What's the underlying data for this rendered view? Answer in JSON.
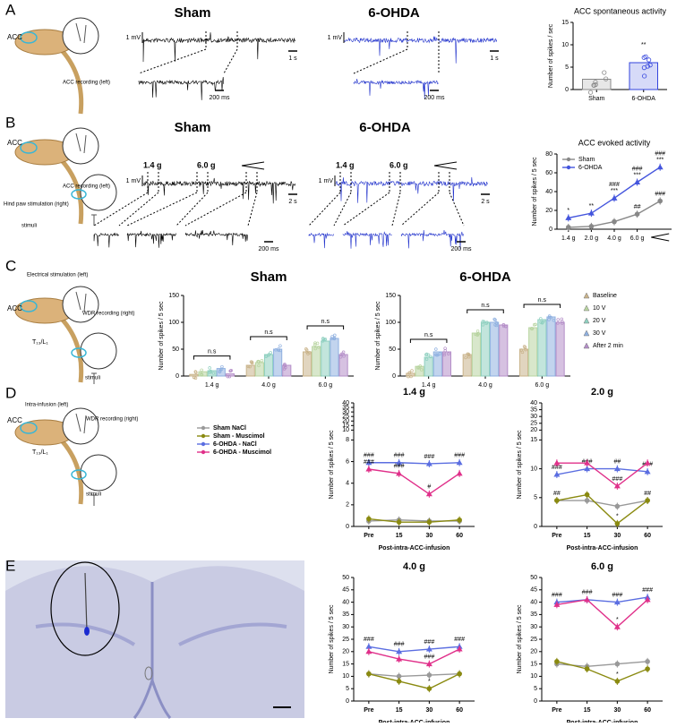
{
  "panels": [
    {
      "label": "A",
      "schematic": [
        "ACC",
        "ACC recording (left)"
      ],
      "recordings": [
        {
          "title": "Sham",
          "color": "#000000",
          "amplitude": "1 mV",
          "time": "1 s",
          "zoom_time": "200 ms"
        },
        {
          "title": "6-OHDA",
          "color": "#2233cc",
          "amplitude": "1 mV",
          "time": "1 s",
          "zoom_time": "200 ms"
        }
      ]
    },
    {
      "label": "B",
      "schematic": [
        "ACC",
        "ACC recording (left)",
        "Hind paw stimulation (right)",
        "stimuli"
      ],
      "recordings": [
        {
          "title": "Sham",
          "color": "#000000",
          "amplitude": "1 mV",
          "time": "2 s",
          "zoom_time": "200 ms",
          "stimuli": [
            "1.4 g",
            "6.0 g"
          ],
          "stimuli_colors": [
            "#e02020",
            "#000000"
          ]
        },
        {
          "title": "6-OHDA",
          "color": "#2233cc",
          "amplitude": "1 mV",
          "time": "2 s",
          "zoom_time": "200 ms",
          "stimuli": [
            "1.4 g",
            "6.0 g"
          ],
          "stimuli_colors": [
            "#e02020",
            "#000000"
          ]
        }
      ]
    },
    {
      "label": "C",
      "schematic": [
        "Electrical stimulation (left)",
        "ACC",
        "WDR recording (right)",
        "T₁₃/L₁",
        "stimuli"
      ]
    },
    {
      "label": "D",
      "schematic": [
        "Intra-infusion (left)",
        "ACC",
        "WDR recording (right)",
        "T₁₃/L₁",
        "stimuli"
      ]
    },
    {
      "label": "E"
    }
  ],
  "chart_data": [
    {
      "type": "bar",
      "title": "ACC spontaneous activity",
      "ylabel": "Number of spikes / sec",
      "categories": [
        "Sham",
        "6-OHDA"
      ],
      "values": [
        2.3,
        6.0
      ],
      "colors": [
        "#888888",
        "#3344dd"
      ],
      "significance": [
        null,
        "**"
      ],
      "ylim": [
        0,
        15
      ],
      "yticks": [
        0,
        5,
        10,
        15
      ]
    },
    {
      "type": "line",
      "title": "ACC evoked activity",
      "ylabel": "Number of spikes / 5 sec",
      "categories": [
        "1.4 g",
        "2.0 g",
        "4.0 g",
        "6.0 g",
        null
      ],
      "category_colors": [
        "#e02020",
        "#000000",
        "#000000",
        "#000000",
        null
      ],
      "ylim": [
        0,
        80
      ],
      "yticks": [
        0,
        20,
        40,
        60,
        80
      ],
      "legend": "upper left",
      "series": [
        {
          "name": "Sham",
          "color": "#888888",
          "marker": "circle",
          "values": [
            2,
            3,
            8,
            16,
            30
          ],
          "significance": [
            null,
            null,
            null,
            "##",
            "###"
          ]
        },
        {
          "name": "6-OHDA",
          "color": "#4455dd",
          "marker": "triangle",
          "values": [
            12,
            17,
            33,
            50,
            66
          ],
          "significance": [
            "*",
            "**",
            [
              "###",
              "***"
            ],
            [
              "###",
              "***"
            ],
            [
              "###",
              "***"
            ]
          ]
        }
      ]
    },
    {
      "type": "bar",
      "title": "Sham",
      "title_color": "#000000",
      "ylabel": "Number of spikes / 5 sec",
      "categories": [
        "1.4 g",
        "4.0 g",
        "6.0 g"
      ],
      "category_colors": [
        "#e02020",
        "#000000",
        "#000000"
      ],
      "ylim": [
        0,
        150
      ],
      "yticks": [
        0,
        50,
        100,
        150
      ],
      "brackets": [
        "n.s",
        "n.s",
        "n.s"
      ],
      "series": [
        {
          "color": "#c9b38a",
          "values": [
            3,
            20,
            45
          ]
        },
        {
          "color": "#b8d4a0",
          "values": [
            8,
            25,
            55
          ]
        },
        {
          "color": "#8fd0c0",
          "values": [
            10,
            40,
            65
          ]
        },
        {
          "color": "#8fb0e0",
          "values": [
            14,
            50,
            70
          ]
        },
        {
          "color": "#b48ec8",
          "values": [
            4,
            20,
            40
          ]
        }
      ]
    },
    {
      "type": "bar",
      "title": "6-OHDA",
      "title_color": "#2233cc",
      "ylabel": "Number of spikes / 5 sec",
      "categories": [
        "1.4 g",
        "4.0 g",
        "6.0 g"
      ],
      "category_colors": [
        "#e02020",
        "#000000",
        "#000000"
      ],
      "ylim": [
        0,
        150
      ],
      "yticks": [
        0,
        50,
        100,
        150
      ],
      "brackets": [
        "n.s",
        "n.s",
        "n.s"
      ],
      "legend": "right",
      "series": [
        {
          "name": "Baseline",
          "color": "#c9b38a",
          "values": [
            5,
            40,
            50
          ]
        },
        {
          "name": "10 V",
          "color": "#b8d4a0",
          "values": [
            18,
            80,
            90
          ]
        },
        {
          "name": "20 V",
          "color": "#8fd0c0",
          "values": [
            35,
            100,
            105
          ]
        },
        {
          "name": "30 V",
          "color": "#8fb0e0",
          "values": [
            45,
            100,
            110
          ]
        },
        {
          "name": "After 2 min",
          "color": "#b48ec8",
          "values": [
            45,
            95,
            100
          ]
        }
      ]
    },
    {
      "type": "line",
      "title": "1.4 g",
      "title_color": "#e02020",
      "ylabel": "Number of spikes / 5 sec",
      "xlabel": "Post-intra-ACC-infusion",
      "categories": [
        "Pre",
        "15",
        "30",
        "60"
      ],
      "ylim": [
        0,
        40
      ],
      "ybreak": [
        8,
        10
      ],
      "yticks": [
        0,
        2,
        4,
        6,
        8,
        10,
        15,
        20,
        25,
        30,
        35,
        40
      ],
      "legend": "left",
      "series": [
        {
          "name": "Sham NaCl",
          "color": "#999999",
          "marker": "circle",
          "values": [
            0.5,
            0.6,
            0.5,
            0.5
          ],
          "significance": [
            null,
            null,
            null,
            null
          ]
        },
        {
          "name": "Sham - Muscimol",
          "color": "#8a8a10",
          "marker": "circle",
          "values": [
            0.7,
            0.4,
            0.4,
            0.6
          ],
          "significance": [
            null,
            null,
            null,
            null
          ]
        },
        {
          "name": "6-OHDA - NaCl",
          "color": "#5b6ee1",
          "marker": "triangle",
          "values": [
            5.9,
            5.9,
            5.8,
            5.9
          ],
          "significance": [
            "###",
            "###",
            "###",
            "###"
          ]
        },
        {
          "name": "6-OHDA - Muscimol",
          "color": "#e0308a",
          "marker": "triangle",
          "values": [
            5.3,
            4.9,
            3.0,
            4.9
          ],
          "significance": [
            "###",
            "###",
            "#",
            null
          ]
        }
      ]
    },
    {
      "type": "line",
      "title": "2.0 g",
      "title_color": "#000000",
      "ylabel": "Number of spikes / 5 sec",
      "xlabel": "Post-intra-ACC-infusion",
      "categories": [
        "Pre",
        "15",
        "30",
        "60"
      ],
      "ylim": [
        0,
        40
      ],
      "ybreak": [
        15,
        20
      ],
      "yticks": [
        0,
        5,
        10,
        15,
        20,
        25,
        30,
        35,
        40
      ],
      "series": [
        {
          "color": "#999999",
          "marker": "circle",
          "values": [
            4.5,
            4.5,
            3.5,
            4.5
          ],
          "significance": [
            null,
            null,
            null,
            null
          ]
        },
        {
          "color": "#8a8a10",
          "marker": "circle",
          "values": [
            4.5,
            5.5,
            0.5,
            4.5
          ],
          "significance": [
            "##",
            null,
            "*",
            "##"
          ]
        },
        {
          "color": "#5b6ee1",
          "marker": "triangle",
          "values": [
            9,
            10,
            10,
            9.5
          ],
          "significance": [
            "###",
            "###",
            "##",
            "###"
          ]
        },
        {
          "color": "#e0308a",
          "marker": "triangle",
          "values": [
            11,
            11,
            7,
            11
          ],
          "significance": [
            null,
            null,
            "###",
            null
          ]
        }
      ]
    },
    {
      "type": "line",
      "title": "4.0 g",
      "title_color": "#000000",
      "ylabel": "Number of spikes / 5 sec",
      "xlabel": "Post-intra-ACC-infusion",
      "categories": [
        "Pre",
        "15",
        "30",
        "60"
      ],
      "ylim": [
        0,
        50
      ],
      "yticks": [
        0,
        5,
        10,
        15,
        20,
        25,
        30,
        35,
        40,
        45,
        50
      ],
      "series": [
        {
          "color": "#999999",
          "marker": "circle",
          "values": [
            11,
            10,
            10.5,
            11
          ],
          "significance": [
            null,
            null,
            null,
            null
          ]
        },
        {
          "color": "#8a8a10",
          "marker": "circle",
          "values": [
            11,
            8,
            5,
            11
          ],
          "significance": [
            null,
            null,
            "*",
            null
          ]
        },
        {
          "color": "#5b6ee1",
          "marker": "triangle",
          "values": [
            22,
            20,
            21,
            22
          ],
          "significance": [
            "###",
            "###",
            "###",
            "###"
          ]
        },
        {
          "color": "#e0308a",
          "marker": "triangle",
          "values": [
            20,
            17,
            15,
            21
          ],
          "significance": [
            null,
            null,
            "###",
            null
          ]
        }
      ]
    },
    {
      "type": "line",
      "title": "6.0 g",
      "title_color": "#000000",
      "ylabel": "Number of spikes / 5 sec",
      "xlabel": "Post-intra-ACC-infusion",
      "categories": [
        "Pre",
        "15",
        "30",
        "60"
      ],
      "ylim": [
        0,
        50
      ],
      "yticks": [
        0,
        5,
        10,
        15,
        20,
        25,
        30,
        35,
        40,
        45,
        50
      ],
      "series": [
        {
          "color": "#999999",
          "marker": "circle",
          "values": [
            15,
            14,
            15,
            16
          ],
          "significance": [
            null,
            null,
            null,
            null
          ]
        },
        {
          "color": "#8a8a10",
          "marker": "circle",
          "values": [
            16,
            13,
            8,
            13
          ],
          "significance": [
            null,
            null,
            "*",
            null
          ]
        },
        {
          "color": "#5b6ee1",
          "marker": "triangle",
          "values": [
            40,
            41,
            40,
            42
          ],
          "significance": [
            "###",
            "###",
            "###",
            "###"
          ]
        },
        {
          "color": "#e0308a",
          "marker": "triangle",
          "values": [
            39,
            41,
            30,
            41
          ],
          "significance": [
            null,
            null,
            "*",
            null
          ]
        }
      ]
    }
  ]
}
